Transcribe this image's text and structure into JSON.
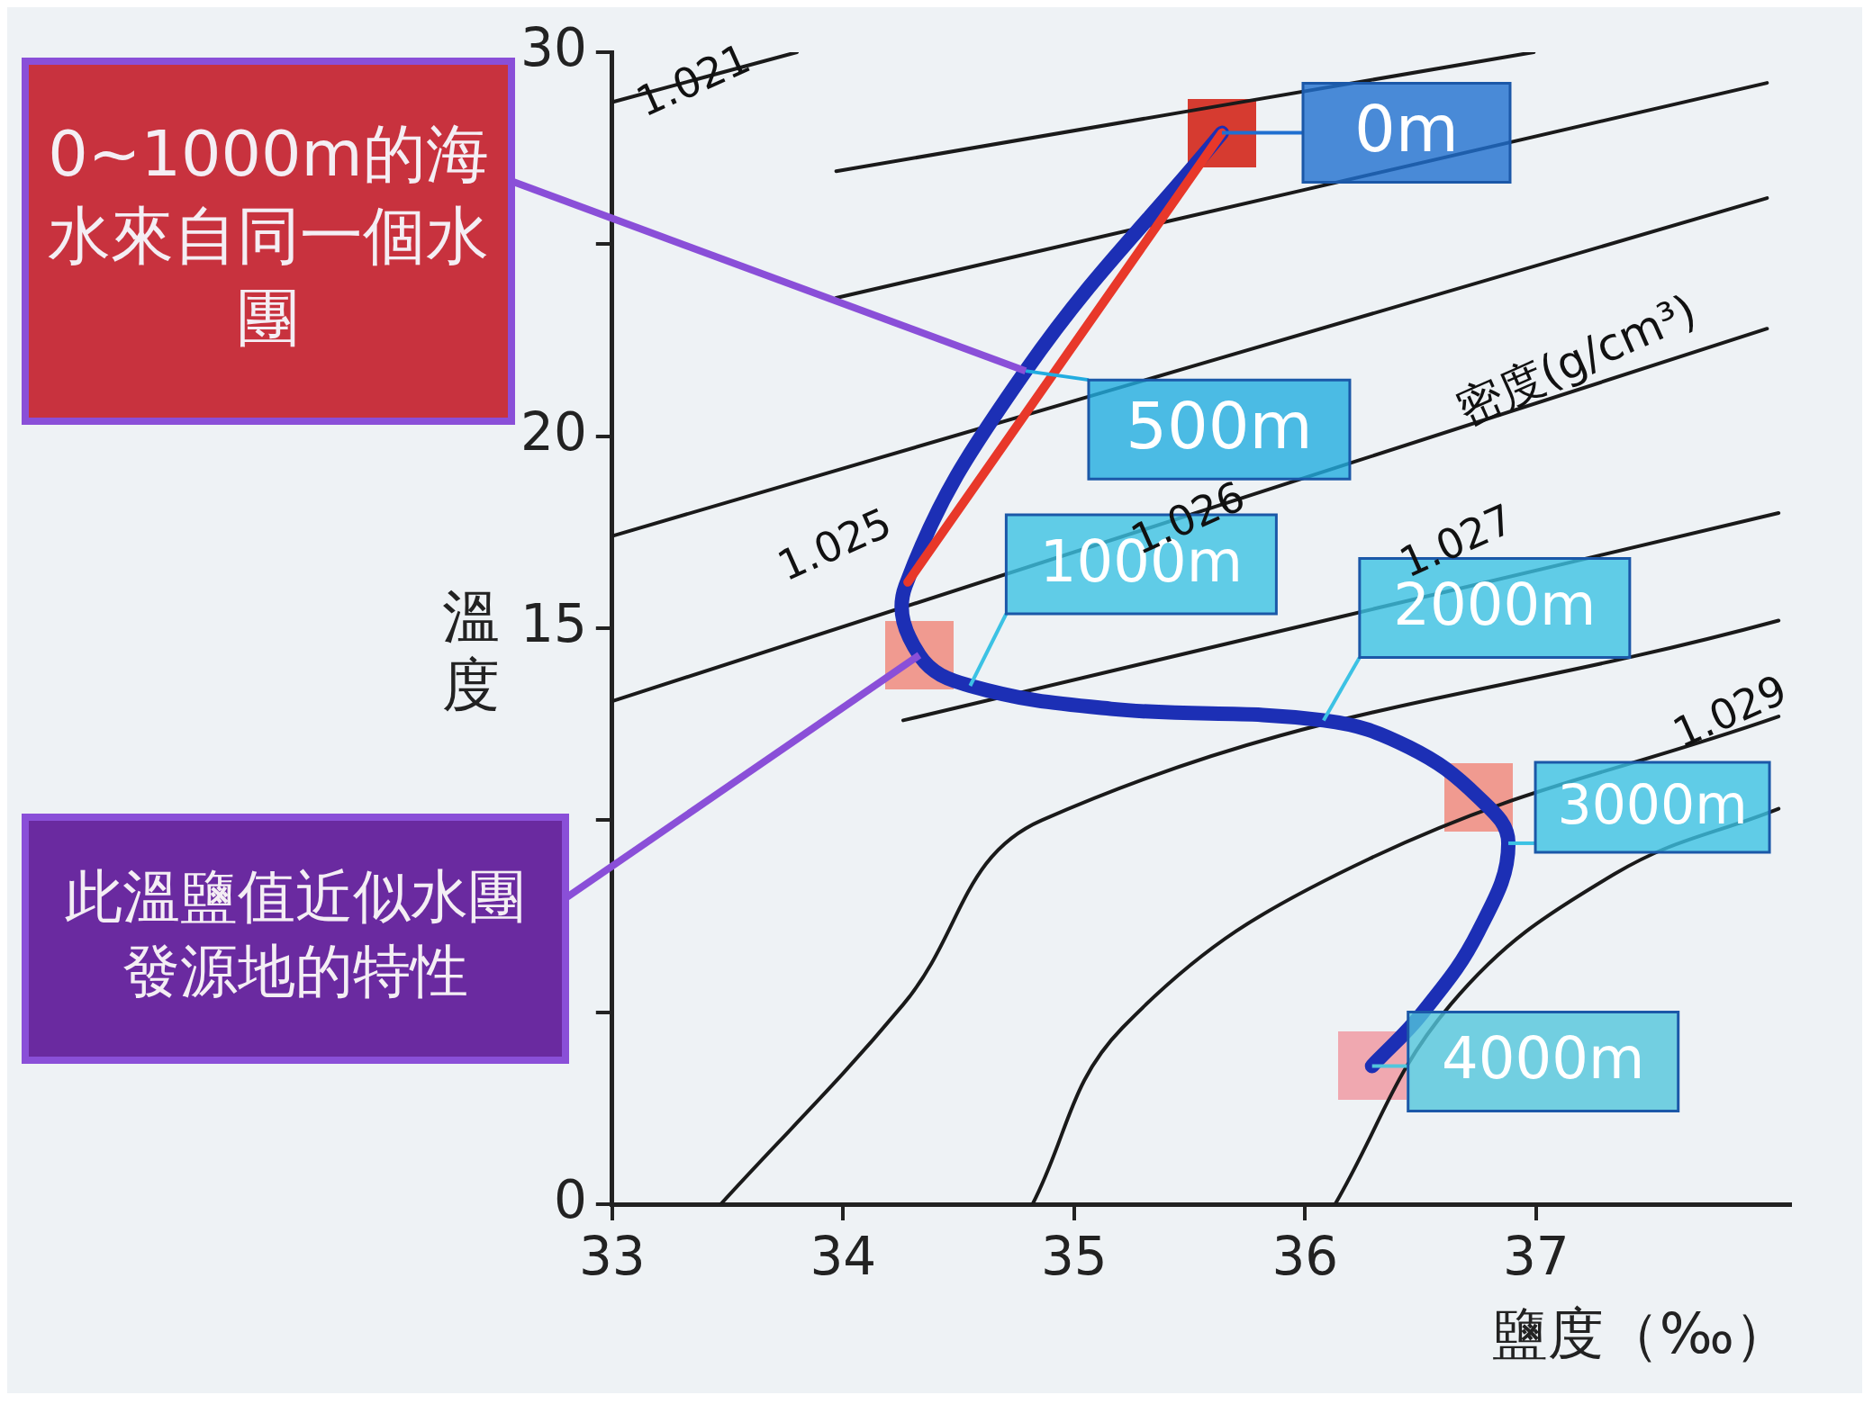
{
  "chart_data": {
    "type": "line",
    "xlabel": "鹽度（‰）",
    "ylabel": "溫度",
    "xlim": [
      33,
      38.1
    ],
    "xticks": [
      33,
      34,
      35,
      36,
      37
    ],
    "ylim": [
      0,
      30
    ],
    "yticks": [
      0,
      {
        "value": 5,
        "label": null
      },
      {
        "value": 10,
        "label": null
      },
      15,
      20,
      {
        "value": 25,
        "label": null
      },
      30
    ],
    "grid": false,
    "legend": false,
    "marker": "none",
    "series": [
      {
        "color": "#1a1a1a",
        "x": [
          33,
          33.8
        ],
        "values": [
          28.7,
          30
        ]
      },
      {
        "color": "#1a1a1a",
        "x": [
          33.97,
          36.99
        ],
        "values": [
          26.9,
          30
        ]
      },
      {
        "color": "#1a1a1a",
        "x": [
          33.97,
          38
        ],
        "values": [
          23.6,
          29.2
        ]
      },
      {
        "color": "#1a1a1a",
        "x": [
          33,
          38
        ],
        "values": [
          17.4,
          26.2
        ]
      },
      {
        "color": "#1a1a1a",
        "x": [
          33,
          38
        ],
        "values": [
          13.1,
          22.8
        ]
      },
      {
        "color": "#1a1a1a",
        "x": [
          34.26,
          38.05
        ],
        "values": [
          12.6,
          18
        ]
      },
      {
        "color": "#1a1a1a",
        "x": [
          33.47,
          34.26,
          34.86,
          38.05
        ],
        "values": [
          0,
          5.2,
          10,
          15.2
        ]
      },
      {
        "color": "#1a1a1a",
        "x": [
          34.82,
          35.21,
          36.28,
          38.05
        ],
        "values": [
          0,
          4.6,
          9,
          12.7
        ]
      },
      {
        "color": "#1a1a1a",
        "x": [
          36.13,
          36.63,
          37.34,
          38.05
        ],
        "values": [
          0,
          5.2,
          8.6,
          10.3
        ]
      },
      {
        "color": "#1c2fb5",
        "x": [
          35.64,
          34.79,
          34.27,
          34.33,
          34.55,
          35.16,
          36.08,
          36.45,
          36.75,
          36.88,
          36.75,
          36.51,
          36.29
        ],
        "values": [
          27.9,
          21.7,
          16.1,
          14.3,
          13.5,
          12.9,
          12.6,
          11.9,
          10.6,
          9.4,
          7.1,
          5,
          3.6
        ]
      },
      {
        "color": "#e8382a",
        "x": [
          35.64,
          34.28
        ],
        "values": [
          27.9,
          16.2
        ]
      }
    ],
    "annotations": [
      {
        "text": "0m",
        "x": 35.64,
        "y": 27.9
      },
      {
        "text": "500m",
        "x": 34.79,
        "y": 21.7
      },
      {
        "text": "1000m",
        "x": 34.55,
        "y": 13.5
      },
      {
        "text": "2000m",
        "x": 36.08,
        "y": 12.6
      },
      {
        "text": "3000m",
        "x": 36.88,
        "y": 9.4
      },
      {
        "text": "4000m",
        "x": 36.29,
        "y": 3.6
      },
      "1.021",
      "1.025",
      "1.026",
      "1.027",
      "1.029",
      "密度(g/cm³)",
      {
        "text": "0~1000m的海水來自同一個水團",
        "x": 34.79,
        "y": 21.7
      },
      {
        "text": "此溫鹽值近似水團發源地的特性",
        "x": 34.33,
        "y": 14.3
      }
    ]
  }
}
